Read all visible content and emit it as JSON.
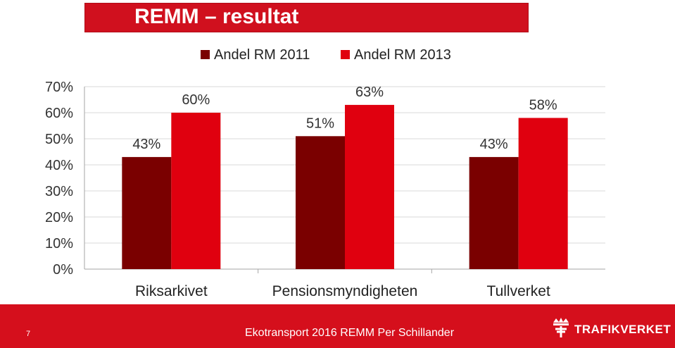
{
  "slide": {
    "title": "REMM – resultat",
    "page_number": "7",
    "footer_text": "Ekotransport 2016 REMM Per Schillander",
    "logo_text": "TRAFIKVERKET",
    "logo_icon": "trafikverket-crown-icon"
  },
  "colors": {
    "brand_red": "#d50f1c",
    "series_2011": "#7a0000",
    "series_2013": "#e0000f"
  },
  "chart_data": {
    "type": "bar",
    "categories": [
      "Riksarkivet",
      "Pensionsmyndigheten",
      "Tullverket"
    ],
    "series": [
      {
        "name": "Andel RM 2011",
        "values": [
          43,
          51,
          43
        ],
        "labels": [
          "43%",
          "51%",
          "43%"
        ]
      },
      {
        "name": "Andel RM 2013",
        "values": [
          60,
          63,
          58
        ],
        "labels": [
          "60%",
          "63%",
          "58%"
        ]
      }
    ],
    "yticks": [
      "0%",
      "10%",
      "20%",
      "30%",
      "40%",
      "50%",
      "60%",
      "70%"
    ],
    "ylim": [
      0,
      70
    ],
    "grid": true,
    "legend_position": "top"
  }
}
